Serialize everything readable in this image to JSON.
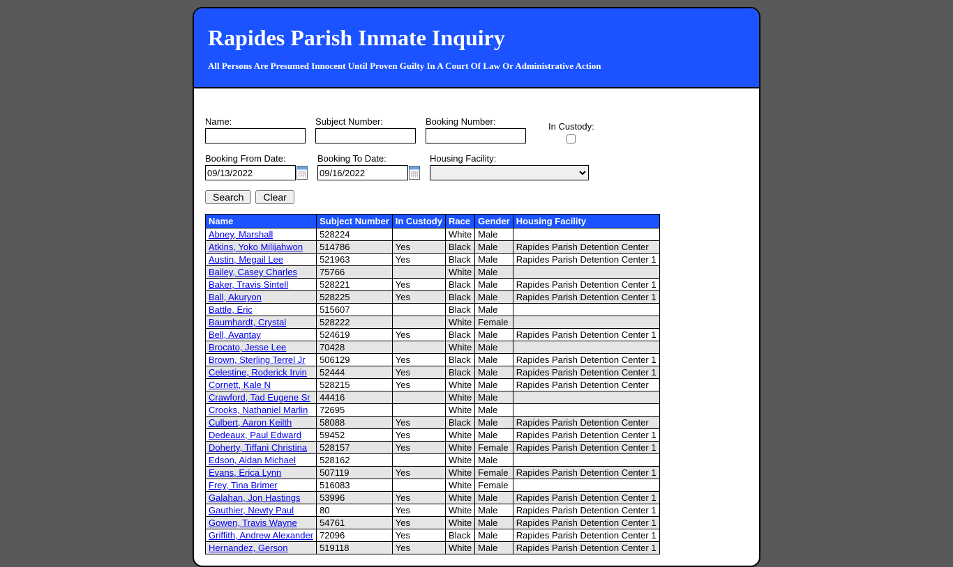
{
  "header": {
    "title": "Rapides Parish Inmate Inquiry",
    "subtitle": "All Persons Are Presumed Innocent Until Proven Guilty In A Court Of Law Or Administrative Action"
  },
  "form": {
    "name_label": "Name:",
    "subject_number_label": "Subject Number:",
    "booking_number_label": "Booking Number:",
    "in_custody_label": "In Custody:",
    "booking_from_label": "Booking From Date:",
    "booking_to_label": "Booking To Date:",
    "housing_facility_label": "Housing Facility:",
    "booking_from_value": "09/13/2022",
    "booking_to_value": "09/16/2022",
    "search_button": "Search",
    "clear_button": "Clear"
  },
  "table": {
    "columns": [
      "Name",
      "Subject Number",
      "In Custody",
      "Race",
      "Gender",
      "Housing Facility"
    ],
    "rows": [
      [
        "Abney, Marshall",
        "528224",
        "",
        "White",
        "Male",
        ""
      ],
      [
        "Atkins, Yoko Milijahwon",
        "514786",
        "Yes",
        "Black",
        "Male",
        "Rapides Parish Detention Center"
      ],
      [
        "Austin, Megail Lee",
        "521963",
        "Yes",
        "Black",
        "Male",
        "Rapides Parish Detention Center 1"
      ],
      [
        "Bailey, Casey Charles",
        "75766",
        "",
        "White",
        "Male",
        ""
      ],
      [
        "Baker, Travis Sintell",
        "528221",
        "Yes",
        "Black",
        "Male",
        "Rapides Parish Detention Center 1"
      ],
      [
        "Ball, Akuryon",
        "528225",
        "Yes",
        "Black",
        "Male",
        "Rapides Parish Detention Center 1"
      ],
      [
        "Battle, Eric",
        "515607",
        "",
        "Black",
        "Male",
        ""
      ],
      [
        "Baumhardt, Crystal",
        "528222",
        "",
        "White",
        "Female",
        ""
      ],
      [
        "Bell, Avantay",
        "524619",
        "Yes",
        "Black",
        "Male",
        "Rapides Parish Detention Center 1"
      ],
      [
        "Brocato, Jesse Lee",
        "70428",
        "",
        "White",
        "Male",
        ""
      ],
      [
        "Brown, Sterling Terrel Jr",
        "506129",
        "Yes",
        "Black",
        "Male",
        "Rapides Parish Detention Center 1"
      ],
      [
        "Celestine, Roderick Irvin",
        "52444",
        "Yes",
        "Black",
        "Male",
        "Rapides Parish Detention Center 1"
      ],
      [
        "Cornett, Kale N",
        "528215",
        "Yes",
        "White",
        "Male",
        "Rapides Parish Detention Center"
      ],
      [
        "Crawford, Tad Eugene Sr",
        "44416",
        "",
        "White",
        "Male",
        ""
      ],
      [
        "Crooks, Nathaniel Marlin",
        "72695",
        "",
        "White",
        "Male",
        ""
      ],
      [
        "Culbert, Aaron Keilth",
        "58088",
        "Yes",
        "Black",
        "Male",
        "Rapides Parish Detention Center"
      ],
      [
        "Dedeaux, Paul Edward",
        "59452",
        "Yes",
        "White",
        "Male",
        "Rapides Parish Detention Center 1"
      ],
      [
        "Doherty, Tiffani Christina",
        "528157",
        "Yes",
        "White",
        "Female",
        "Rapides Parish Detention Center 1"
      ],
      [
        "Edson, Aidan Michael",
        "528162",
        "",
        "White",
        "Male",
        ""
      ],
      [
        "Evans, Erica Lynn",
        "507119",
        "Yes",
        "White",
        "Female",
        "Rapides Parish Detention Center 1"
      ],
      [
        "Frey, Tina Brimer",
        "516083",
        "",
        "White",
        "Female",
        ""
      ],
      [
        "Galahan, Jon Hastings",
        "53996",
        "Yes",
        "White",
        "Male",
        "Rapides Parish Detention Center 1"
      ],
      [
        "Gauthier, Newty Paul",
        "80",
        "Yes",
        "White",
        "Male",
        "Rapides Parish Detention Center 1"
      ],
      [
        "Gowen, Travis Wayne",
        "54761",
        "Yes",
        "White",
        "Male",
        "Rapides Parish Detention Center 1"
      ],
      [
        "Griffith, Andrew Alexander",
        "72096",
        "Yes",
        "Black",
        "Male",
        "Rapides Parish Detention Center 1"
      ],
      [
        "Hernandez, Gerson",
        "519118",
        "Yes",
        "White",
        "Male",
        "Rapides Parish Detention Center 1"
      ]
    ]
  }
}
